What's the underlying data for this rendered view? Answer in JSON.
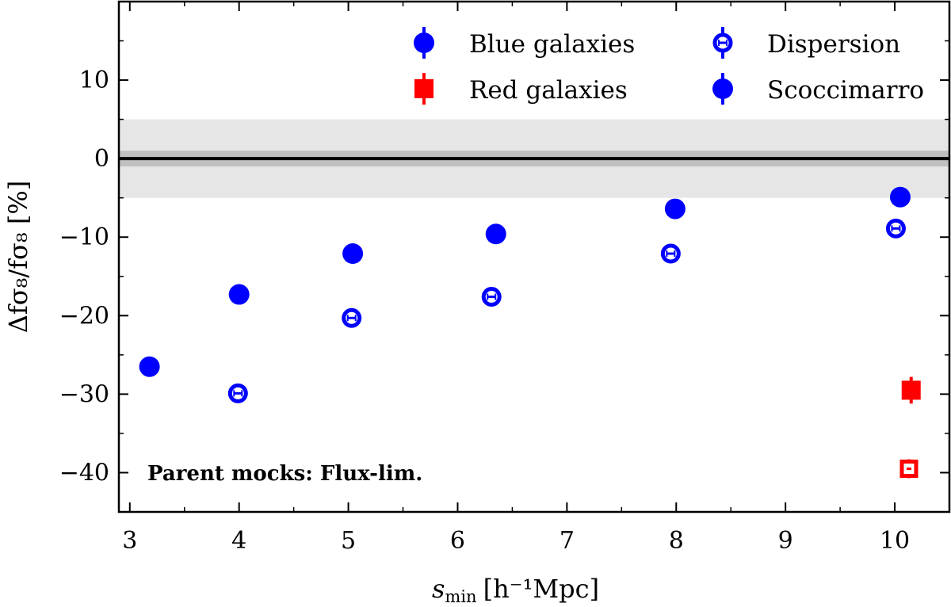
{
  "chart_data": {
    "type": "scatter",
    "xlabel_main": "s",
    "xlabel_sub": "min",
    "xlabel_unit": "[h⁻¹Mpc]",
    "ylabel": "Δfσ₈/fσ₈ [%]",
    "xlim": [
      2.9,
      10.5
    ],
    "ylim": [
      -45,
      20
    ],
    "xticks": [
      3,
      4,
      5,
      6,
      7,
      8,
      9,
      10
    ],
    "yticks": [
      10,
      0,
      -10,
      -20,
      -30,
      -40
    ],
    "xtick_labels": [
      "3",
      "4",
      "5",
      "6",
      "7",
      "8",
      "9",
      "10"
    ],
    "ytick_labels": [
      "10",
      "0",
      "−10",
      "−20",
      "−30",
      "−40"
    ],
    "reference_line": 0,
    "bands": [
      {
        "y0": -5,
        "y1": 5,
        "color": "#e6e6e6"
      },
      {
        "y0": -1,
        "y1": 1,
        "color": "#bfbfbf"
      }
    ],
    "series": [
      {
        "name": "Scoccimarro",
        "color": "#0000ff",
        "marker": "filled-circle",
        "points": [
          {
            "x": 3.18,
            "y": -26.5
          },
          {
            "x": 4.0,
            "y": -17.3
          },
          {
            "x": 5.04,
            "y": -12.1
          },
          {
            "x": 6.35,
            "y": -9.6
          },
          {
            "x": 7.99,
            "y": -6.4
          },
          {
            "x": 10.05,
            "y": -4.9
          }
        ]
      },
      {
        "name": "Dispersion",
        "color": "#0000ff",
        "marker": "open-circle",
        "points": [
          {
            "x": 3.99,
            "y": -29.9,
            "err": 0.6
          },
          {
            "x": 5.03,
            "y": -20.3,
            "err": 0.6
          },
          {
            "x": 6.31,
            "y": -17.6,
            "err": 0.6
          },
          {
            "x": 7.95,
            "y": -12.1,
            "err": 0.6
          },
          {
            "x": 10.01,
            "y": -8.9,
            "err": 0.6
          }
        ]
      },
      {
        "name": "Red galaxies",
        "color": "#ff0000",
        "marker": "filled-square",
        "points": [
          {
            "x": 10.15,
            "y": -29.5,
            "err": 1.7
          }
        ]
      },
      {
        "name": "Red galaxies (Dispersion)",
        "color": "#ff0000",
        "marker": "open-square",
        "points": [
          {
            "x": 10.13,
            "y": -39.5,
            "err": 1.2
          }
        ]
      }
    ],
    "legend": {
      "placement": "top-right",
      "entries": [
        {
          "label": "Blue galaxies",
          "marker": "filled-circle",
          "color": "#0000ff"
        },
        {
          "label": "Dispersion",
          "marker": "open-circle",
          "color": "#0000ff"
        },
        {
          "label": "Red galaxies",
          "marker": "filled-square",
          "color": "#ff0000"
        },
        {
          "label": "Scoccimarro",
          "marker": "filled-circle",
          "color": "#0000ff"
        }
      ]
    },
    "annotation": "Parent mocks: Flux-lim."
  }
}
